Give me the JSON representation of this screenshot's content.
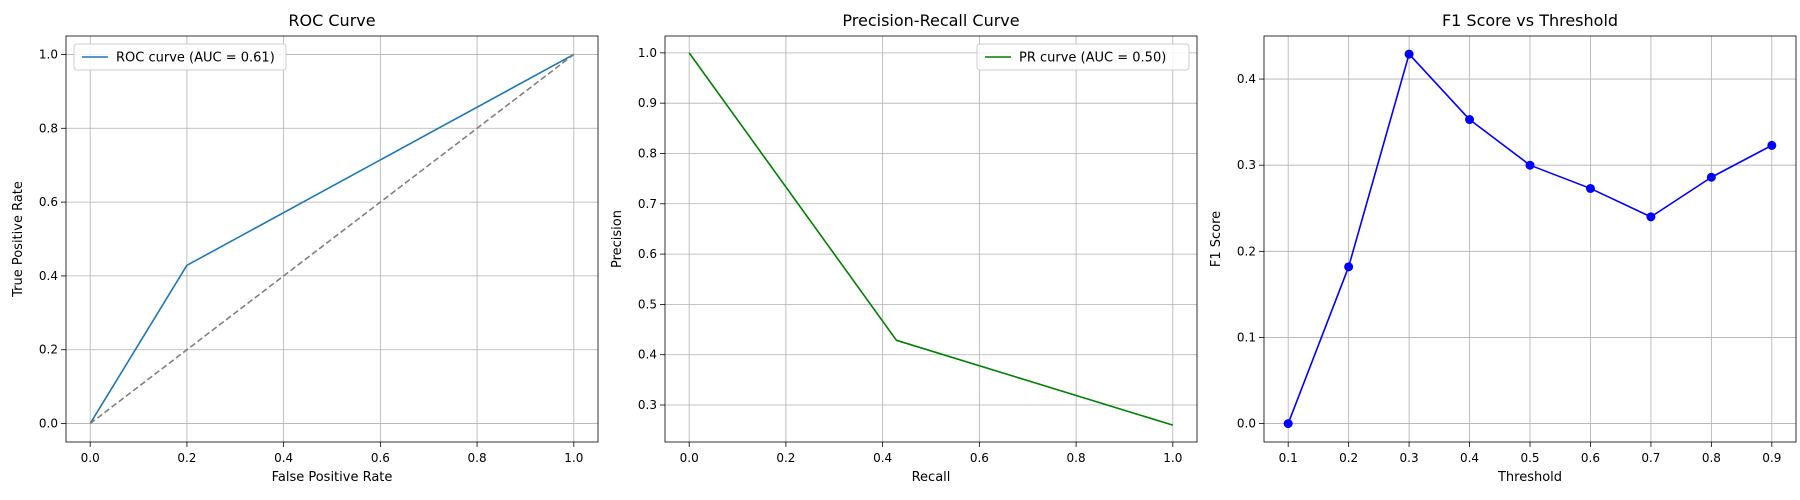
{
  "chart_data": [
    {
      "type": "line",
      "title": "ROC Curve",
      "xlabel": "False Positive Rate",
      "ylabel": "True Positive Rate",
      "xlim": [
        -0.05,
        1.05
      ],
      "ylim": [
        -0.05,
        1.05
      ],
      "xticks": [
        0.0,
        0.2,
        0.4,
        0.6,
        0.8,
        1.0
      ],
      "yticks": [
        0.0,
        0.2,
        0.4,
        0.6,
        0.8,
        1.0
      ],
      "xtick_labels": [
        "0.0",
        "0.2",
        "0.4",
        "0.6",
        "0.8",
        "1.0"
      ],
      "ytick_labels": [
        "0.0",
        "0.2",
        "0.4",
        "0.6",
        "0.8",
        "1.0"
      ],
      "grid": true,
      "legend": "top-left",
      "series": [
        {
          "name": "ROC curve (AUC = 0.61)",
          "x": [
            0.0,
            0.2,
            1.0
          ],
          "y": [
            0.0,
            0.4286,
            1.0
          ],
          "color": "#1f77b4",
          "dash": "solid",
          "markers": false,
          "in_legend": true
        },
        {
          "x": [
            0.0,
            1.0
          ],
          "y": [
            0.0,
            1.0
          ],
          "color": "#808080",
          "dash": "dashed",
          "markers": false,
          "in_legend": false
        }
      ]
    },
    {
      "type": "line",
      "title": "Precision-Recall Curve",
      "xlabel": "Recall",
      "ylabel": "Precision",
      "xlim": [
        -0.05,
        1.05
      ],
      "ylim": [
        0.2265,
        1.0335
      ],
      "xticks": [
        0.0,
        0.2,
        0.4,
        0.6,
        0.8,
        1.0
      ],
      "yticks": [
        0.3,
        0.4,
        0.5,
        0.6,
        0.7,
        0.8,
        0.9,
        1.0
      ],
      "xtick_labels": [
        "0.0",
        "0.2",
        "0.4",
        "0.6",
        "0.8",
        "1.0"
      ],
      "ytick_labels": [
        "0.3",
        "0.4",
        "0.5",
        "0.6",
        "0.7",
        "0.8",
        "0.9",
        "1.0"
      ],
      "grid": true,
      "legend": "top-right",
      "series": [
        {
          "name": "PR curve (AUC = 0.50)",
          "x": [
            0.0,
            0.4286,
            1.0
          ],
          "y": [
            1.0,
            0.4286,
            0.26
          ],
          "color": "#008000",
          "dash": "solid",
          "markers": false,
          "in_legend": true
        }
      ]
    },
    {
      "type": "line",
      "title": "F1 Score vs Threshold",
      "xlabel": "Threshold",
      "ylabel": "F1 Score",
      "xlim": [
        0.06,
        0.94
      ],
      "ylim": [
        -0.0214,
        0.45
      ],
      "xticks": [
        0.1,
        0.2,
        0.3,
        0.4,
        0.5,
        0.6,
        0.7,
        0.8,
        0.9
      ],
      "yticks": [
        0.0,
        0.1,
        0.2,
        0.3,
        0.4
      ],
      "xtick_labels": [
        "0.1",
        "0.2",
        "0.3",
        "0.4",
        "0.5",
        "0.6",
        "0.7",
        "0.8",
        "0.9"
      ],
      "ytick_labels": [
        "0.0",
        "0.1",
        "0.2",
        "0.3",
        "0.4"
      ],
      "grid": true,
      "legend": "none",
      "series": [
        {
          "x": [
            0.1,
            0.2,
            0.3,
            0.4,
            0.5,
            0.6,
            0.7,
            0.8,
            0.9
          ],
          "y": [
            0.0,
            0.182,
            0.429,
            0.353,
            0.3,
            0.273,
            0.24,
            0.286,
            0.323
          ],
          "color": "#0000ff",
          "dash": "solid",
          "markers": true,
          "in_legend": false
        }
      ]
    }
  ]
}
